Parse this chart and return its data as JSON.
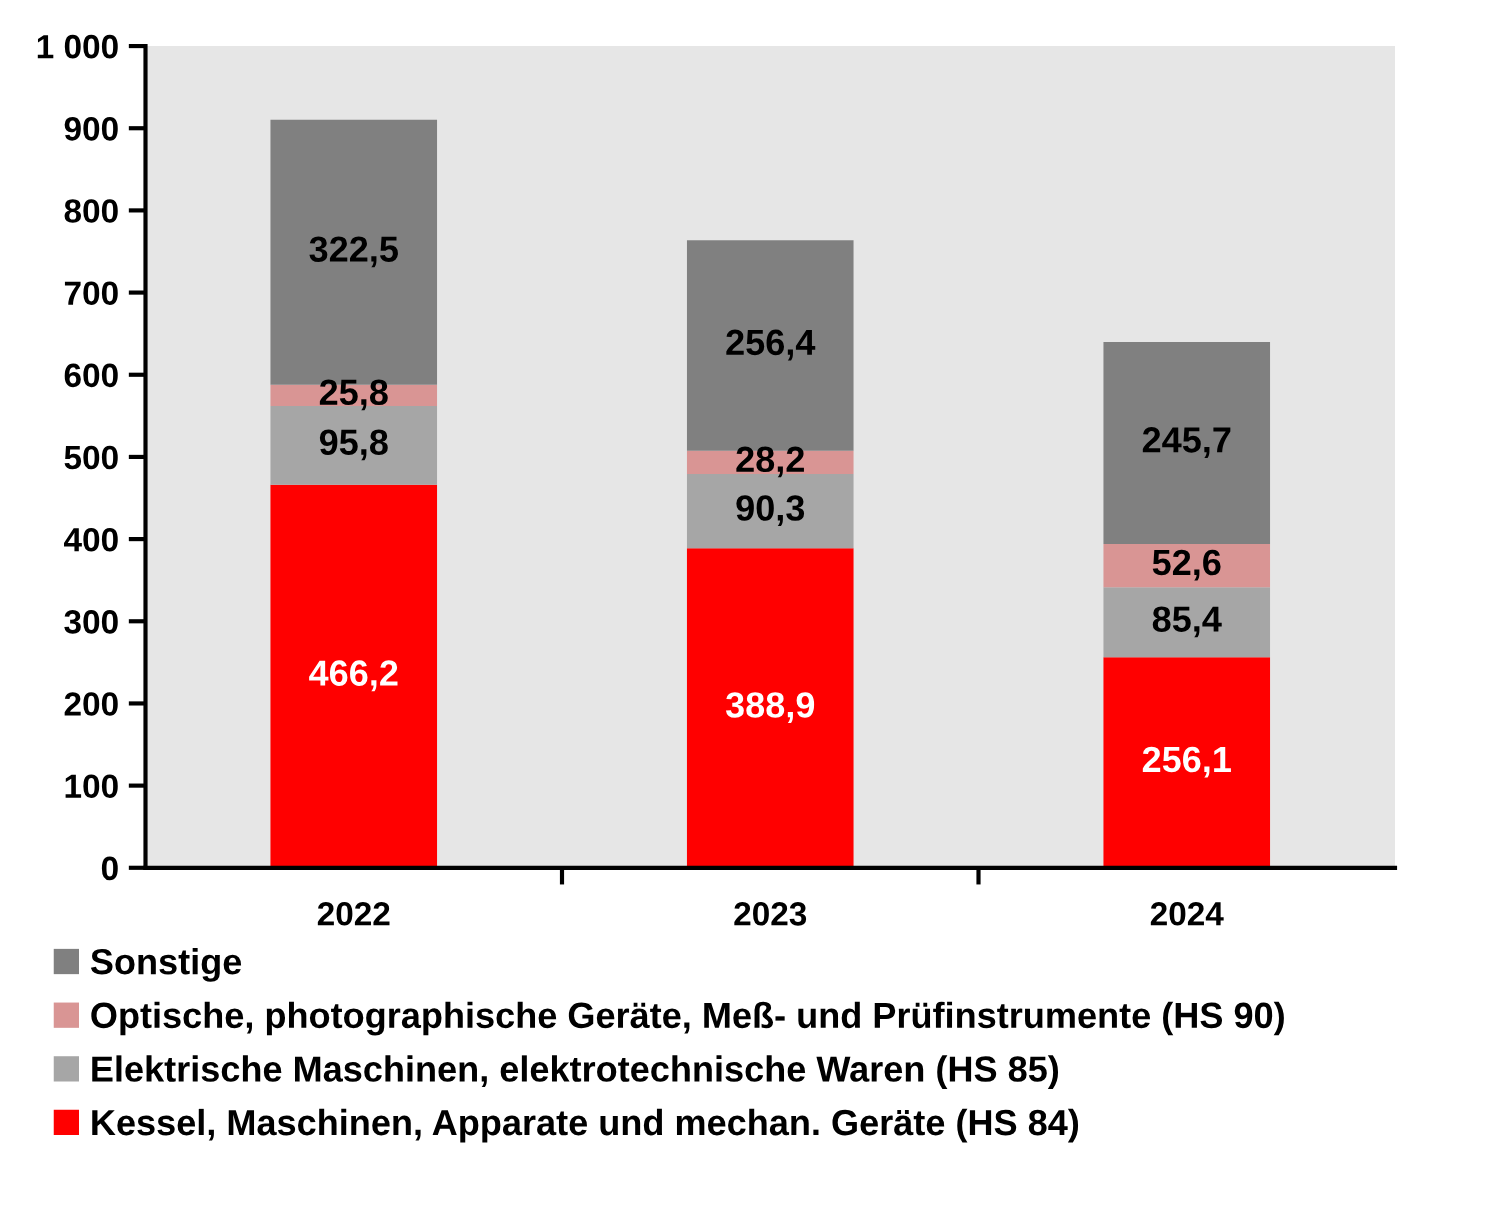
{
  "chart_data": {
    "type": "bar",
    "stacked": true,
    "categories": [
      "2022",
      "2023",
      "2024"
    ],
    "series": [
      {
        "name": "Kessel, Maschinen, Apparate und mechan. Geräte (HS 84)",
        "color": "#ff0000",
        "values": [
          466.2,
          388.9,
          256.1
        ],
        "value_labels": [
          "466,2",
          "388,9",
          "256,1"
        ]
      },
      {
        "name": "Elektrische Maschinen, elektrotechnische Waren (HS 85)",
        "color": "#a6a6a6",
        "values": [
          95.8,
          90.3,
          85.4
        ],
        "value_labels": [
          "95,8",
          "90,3",
          "85,4"
        ]
      },
      {
        "name": "Optische, photographische Geräte, Meß- und Prüfinstrumente (HS 90)",
        "color": "#d99594",
        "values": [
          25.8,
          28.2,
          52.6
        ],
        "value_labels": [
          "25,8",
          "28,2",
          "52,6"
        ]
      },
      {
        "name": "Sonstige",
        "color": "#808080",
        "values": [
          322.5,
          256.4,
          245.7
        ],
        "value_labels": [
          "322,5",
          "256,4",
          "245,7"
        ]
      }
    ],
    "ylim": [
      0,
      1000
    ],
    "yticks": [
      0,
      100,
      200,
      300,
      400,
      500,
      600,
      700,
      800,
      900,
      {
        "value": 1000,
        "label": "1 000"
      }
    ],
    "grid": false,
    "legend": "bottom"
  }
}
